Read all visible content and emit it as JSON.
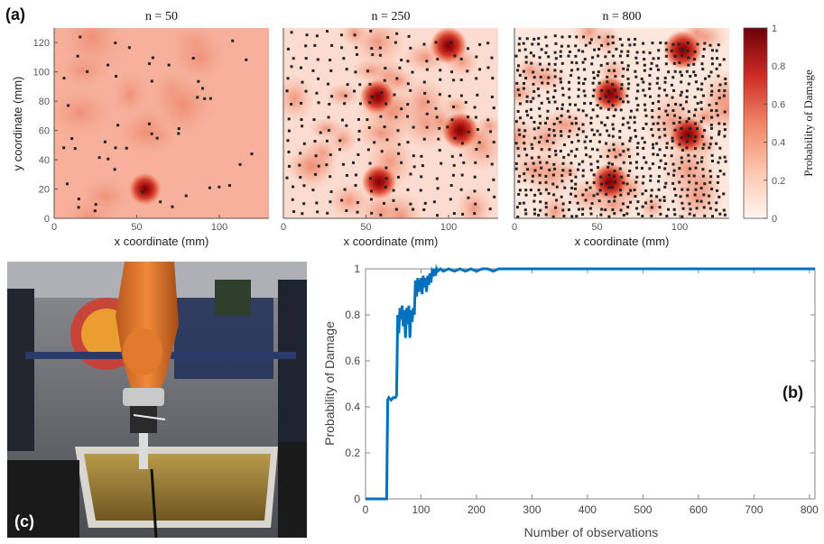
{
  "panel_labels": {
    "a": "(a)",
    "b": "(b)",
    "c": "(c)"
  },
  "chart_data": [
    {
      "type": "heatmap",
      "title": "n = 50",
      "n_points": 50,
      "xlabel": "x coordinate (mm)",
      "ylabel": "y coordinate (mm)",
      "xlim": [
        0,
        130
      ],
      "ylim": [
        0,
        130
      ],
      "xticks": [
        "0",
        "50",
        "100"
      ],
      "yticks": [
        "0",
        "20",
        "40",
        "60",
        "80",
        "100",
        "120"
      ],
      "damage_centers": [
        {
          "x": 55,
          "y": 20,
          "p": 0.85
        }
      ]
    },
    {
      "type": "heatmap",
      "title": "n = 250",
      "n_points": 250,
      "xlabel": "x coordinate (mm)",
      "xlim": [
        0,
        130
      ],
      "ylim": [
        0,
        130
      ],
      "xticks": [
        "0",
        "50",
        "100"
      ],
      "damage_centers": [
        {
          "x": 57,
          "y": 83,
          "p": 0.9
        },
        {
          "x": 100,
          "y": 118,
          "p": 0.95
        },
        {
          "x": 107,
          "y": 60,
          "p": 0.95
        },
        {
          "x": 58,
          "y": 25,
          "p": 0.9
        }
      ]
    },
    {
      "type": "heatmap",
      "title": "n = 800",
      "n_points": 800,
      "xlabel": "x coordinate (mm)",
      "xlim": [
        0,
        130
      ],
      "ylim": [
        0,
        130
      ],
      "xticks": [
        "0",
        "50",
        "100"
      ],
      "damage_centers": [
        {
          "x": 58,
          "y": 85,
          "p": 0.9
        },
        {
          "x": 102,
          "y": 115,
          "p": 1.0
        },
        {
          "x": 105,
          "y": 57,
          "p": 0.95
        },
        {
          "x": 58,
          "y": 25,
          "p": 0.95
        }
      ],
      "colorbar": {
        "label": "Probability of Damage",
        "ticks": [
          "0",
          "0.2",
          "0.4",
          "0.6",
          "0.8",
          "1"
        ],
        "range": [
          0,
          1
        ]
      }
    },
    {
      "type": "line",
      "xlabel": "Number of observations",
      "ylabel": "Probability of Damage",
      "xlim": [
        0,
        810
      ],
      "ylim": [
        0,
        1
      ],
      "xticks": [
        "0",
        "100",
        "200",
        "300",
        "400",
        "500",
        "600",
        "700",
        "800"
      ],
      "yticks": [
        "0",
        "0.2",
        "0.4",
        "0.6",
        "0.8",
        "1"
      ],
      "color": "#0072bd",
      "series": [
        {
          "x": [
            0,
            38,
            40,
            42,
            46,
            50,
            54,
            56,
            58,
            60,
            62,
            64,
            66,
            68,
            70,
            72,
            74,
            76,
            78,
            80,
            82,
            84,
            86,
            88,
            90,
            92,
            94,
            96,
            98,
            100,
            102,
            104,
            106,
            108,
            110,
            112,
            114,
            116,
            118,
            120,
            122,
            124,
            126,
            128,
            130,
            135,
            140,
            150,
            160,
            170,
            180,
            190,
            200,
            210,
            220,
            230,
            240,
            300,
            400,
            500,
            600,
            700,
            810
          ],
          "y": [
            0,
            0,
            0.43,
            0.44,
            0.43,
            0.44,
            0.44,
            0.45,
            0.8,
            0.72,
            0.83,
            0.78,
            0.84,
            0.75,
            0.82,
            0.7,
            0.83,
            0.76,
            0.84,
            0.7,
            0.82,
            0.77,
            0.83,
            0.8,
            0.95,
            0.88,
            0.96,
            0.9,
            0.93,
            0.96,
            0.89,
            0.97,
            0.92,
            0.96,
            0.9,
            0.97,
            0.93,
            0.98,
            0.94,
            0.99,
            0.98,
            1.0,
            0.97,
            1.0,
            0.99,
            1.0,
            0.99,
            1.0,
            0.99,
            1.0,
            0.99,
            1.0,
            0.99,
            1.0,
            1.0,
            0.99,
            1.0,
            1.0,
            1.0,
            1.0,
            1.0,
            1.0,
            1.0
          ]
        }
      ]
    }
  ]
}
